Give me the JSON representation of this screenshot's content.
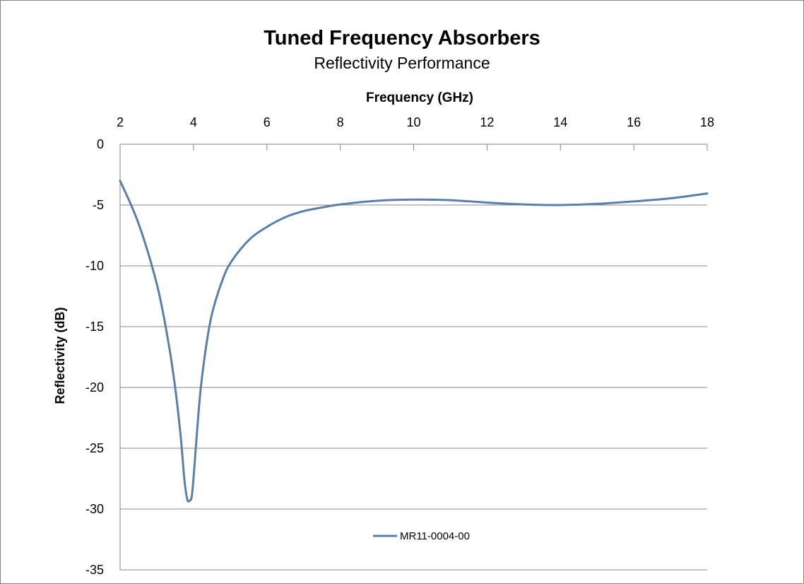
{
  "chart_data": {
    "type": "line",
    "title": "Tuned Frequency Absorbers",
    "subtitle": "Reflectivity Performance",
    "xlabel": "Frequency (GHz)",
    "ylabel": "Reflectivity (dB)",
    "xlim": [
      2,
      18
    ],
    "ylim": [
      -35,
      0
    ],
    "x_ticks": [
      "2",
      "4",
      "6",
      "8",
      "10",
      "12",
      "14",
      "16",
      "18"
    ],
    "y_ticks": [
      "0",
      "-5",
      "-10",
      "-15",
      "-20",
      "-25",
      "-30",
      "-35"
    ],
    "x_axis_position": "top",
    "grid": "horizontal",
    "legend": "bottom",
    "colors": {
      "series": "#5b7fa8",
      "grid": "#868686"
    },
    "series": [
      {
        "name": "MR11-0004-00",
        "x": [
          2,
          2.5,
          3,
          3.3,
          3.5,
          3.65,
          3.75,
          3.83,
          3.9,
          3.95,
          4.0,
          4.05,
          4.1,
          4.2,
          4.35,
          4.5,
          4.75,
          5,
          5.5,
          6,
          6.5,
          7,
          7.5,
          8,
          9,
          10,
          11,
          12,
          13,
          14,
          15,
          16,
          17,
          18
        ],
        "y": [
          -3.0,
          -6.5,
          -11.5,
          -16.0,
          -20.0,
          -24.0,
          -27.5,
          -29.2,
          -29.3,
          -29.0,
          -27.5,
          -25.5,
          -23.5,
          -20.0,
          -16.5,
          -14.0,
          -11.5,
          -9.8,
          -7.9,
          -6.8,
          -6.0,
          -5.5,
          -5.2,
          -4.95,
          -4.65,
          -4.55,
          -4.6,
          -4.8,
          -4.95,
          -5.0,
          -4.9,
          -4.7,
          -4.45,
          -4.05
        ]
      }
    ]
  }
}
